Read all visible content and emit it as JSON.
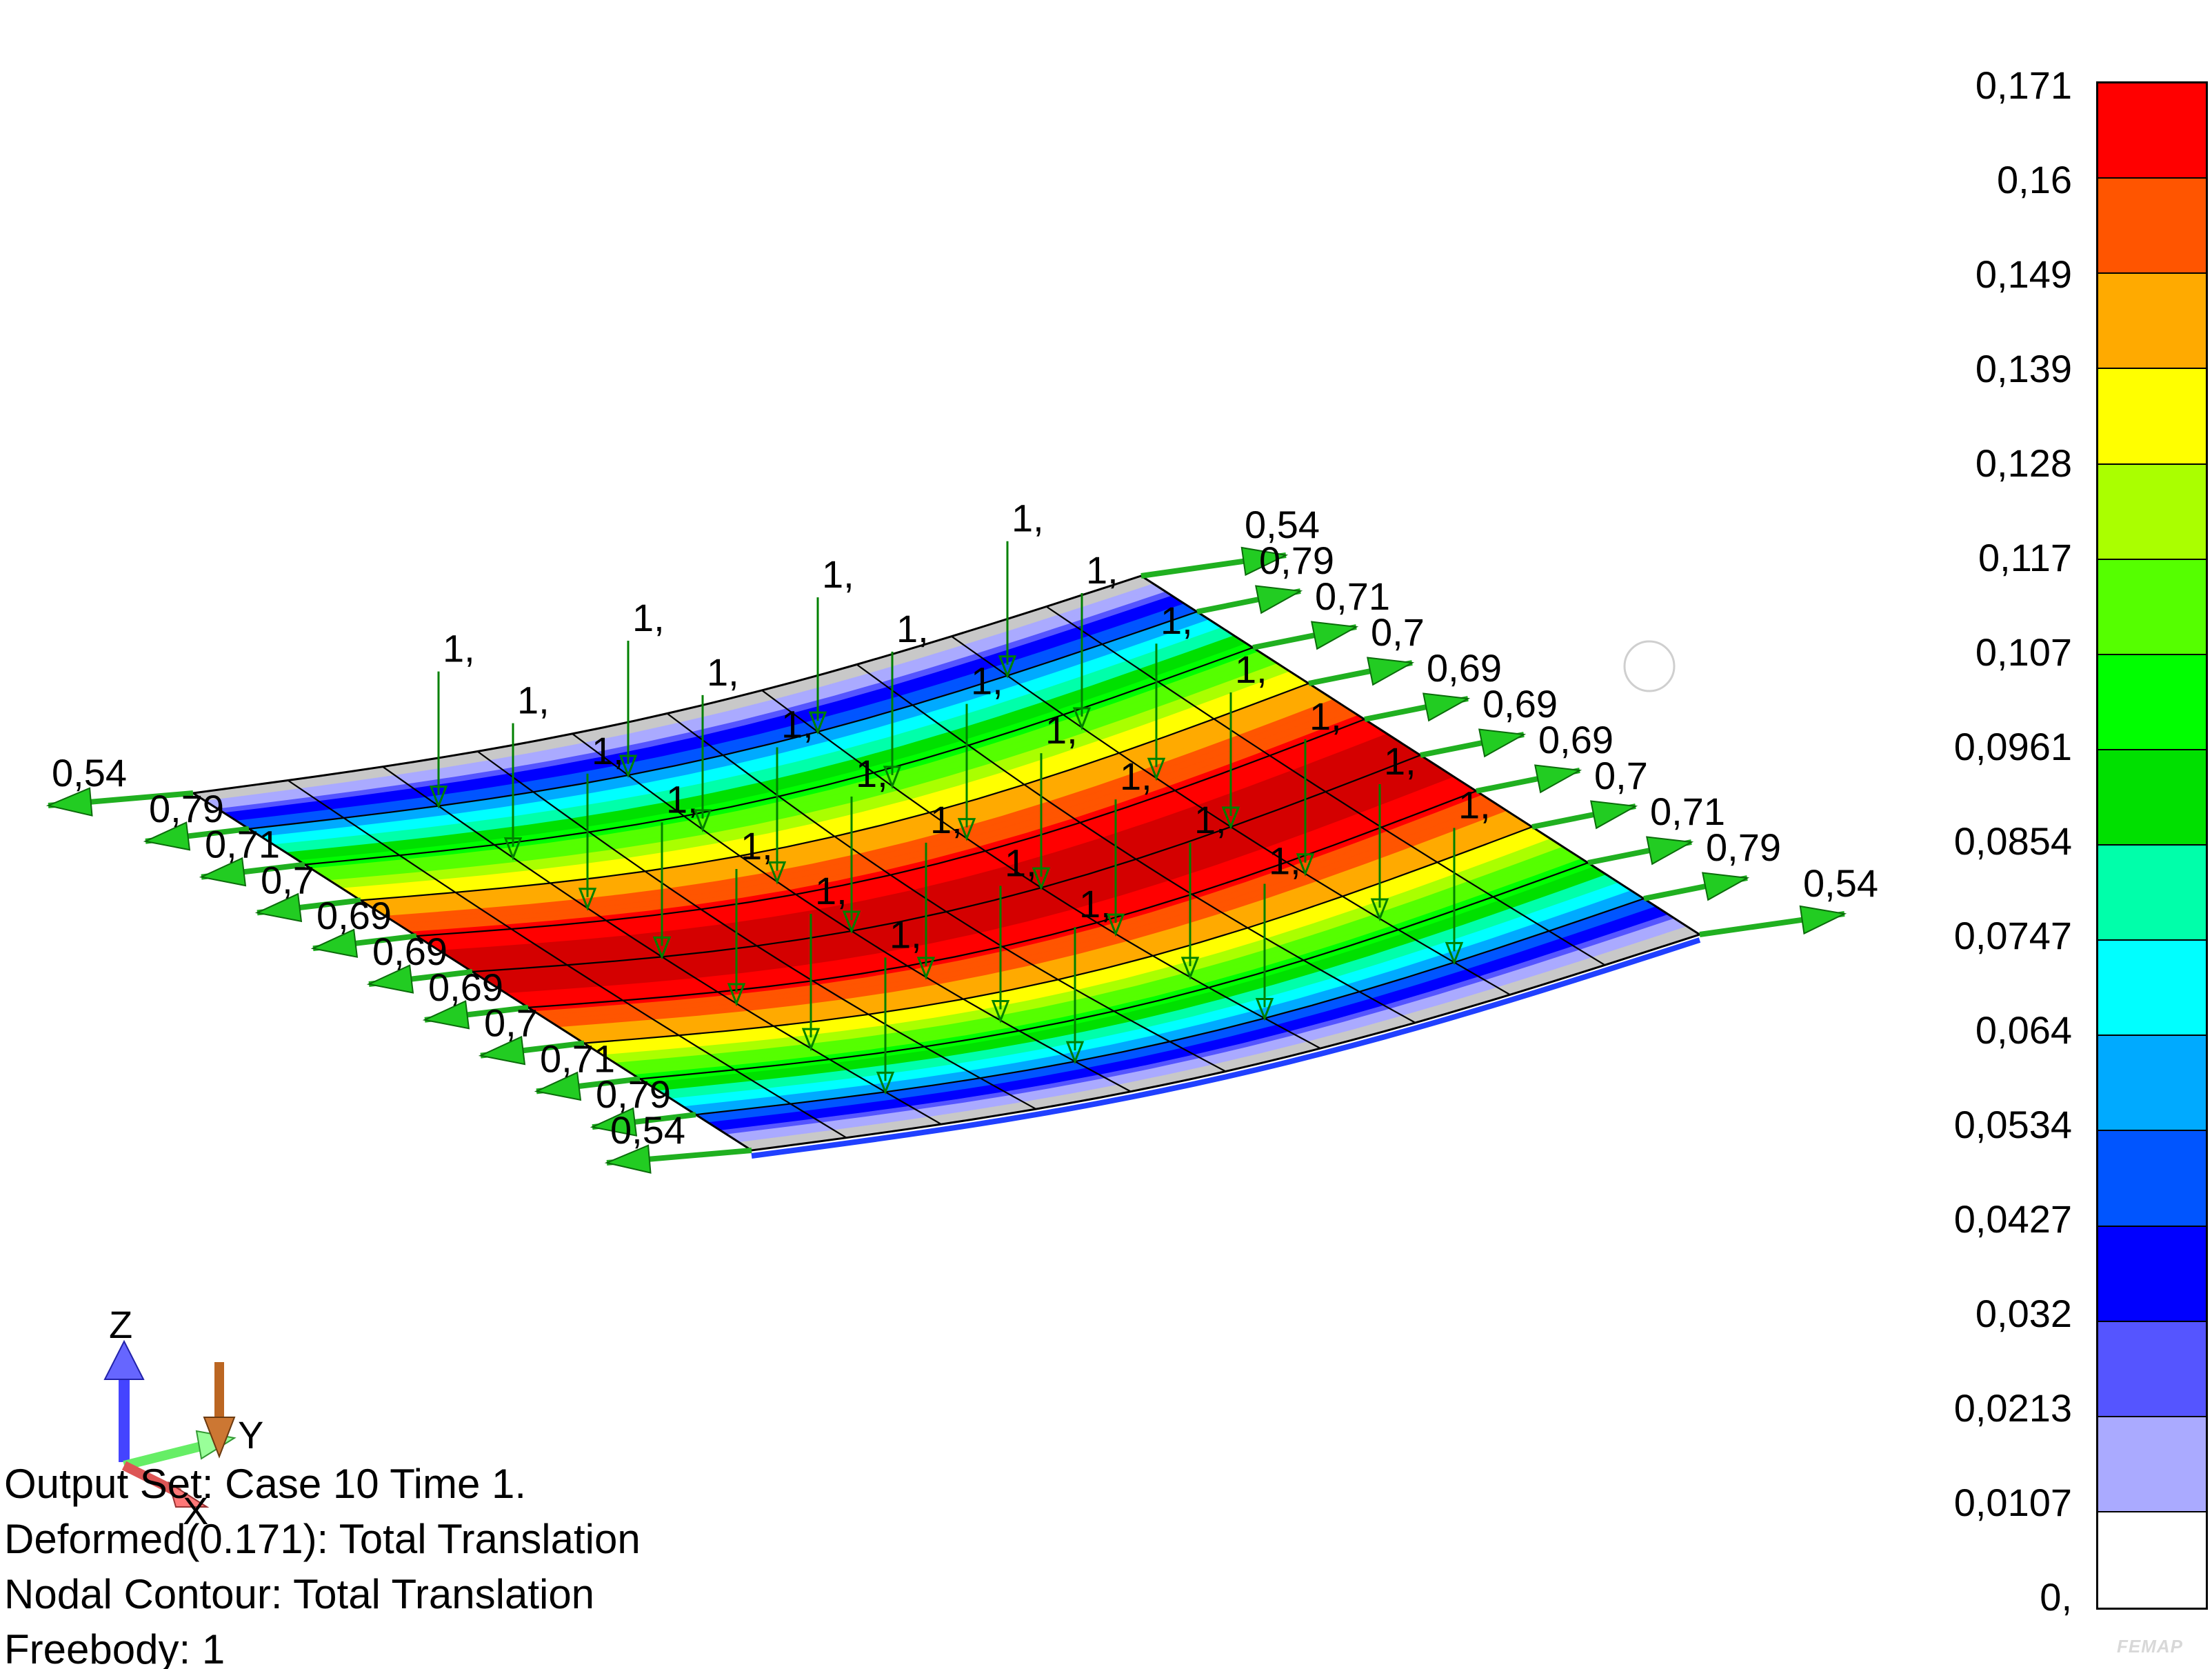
{
  "status_lines": {
    "output_set": "Output Set: Case 10 Time 1.",
    "deformed": "Deformed(0.171): Total Translation",
    "contour": "Nodal Contour: Total Translation",
    "freebody": "Freebody: 1"
  },
  "legend": {
    "labels": [
      "0,171",
      "0,16",
      "0,149",
      "0,139",
      "0,128",
      "0,117",
      "0,107",
      "0,0961",
      "0,0854",
      "0,0747",
      "0,064",
      "0,0534",
      "0,0427",
      "0,032",
      "0,0213",
      "0,0107",
      "0,"
    ],
    "band_colors": [
      "#ff0000",
      "#ff5500",
      "#ffaa00",
      "#ffff00",
      "#aaff00",
      "#55ff00",
      "#00ff00",
      "#00e000",
      "#00ffaa",
      "#00ffff",
      "#00aaff",
      "#0055ff",
      "#0000ff",
      "#5555ff",
      "#aaaaff",
      "#ffffff"
    ]
  },
  "loads": {
    "force_label": "1,",
    "left_edge": [
      "0,54",
      "0,79",
      "0,71",
      "0,7",
      "0,69",
      "0,69",
      "0,69",
      "0,7",
      "0,71",
      "0,79",
      "0,54"
    ],
    "right_edge": [
      "0,54",
      "0,79",
      "0,71",
      "0,7",
      "0,69",
      "0,69",
      "0,69",
      "0,7",
      "0,71",
      "0,79",
      "0,54"
    ]
  },
  "triad": {
    "z_label": "Z",
    "y_label": "Y",
    "x_label": "X"
  },
  "brand": "FEMAP"
}
